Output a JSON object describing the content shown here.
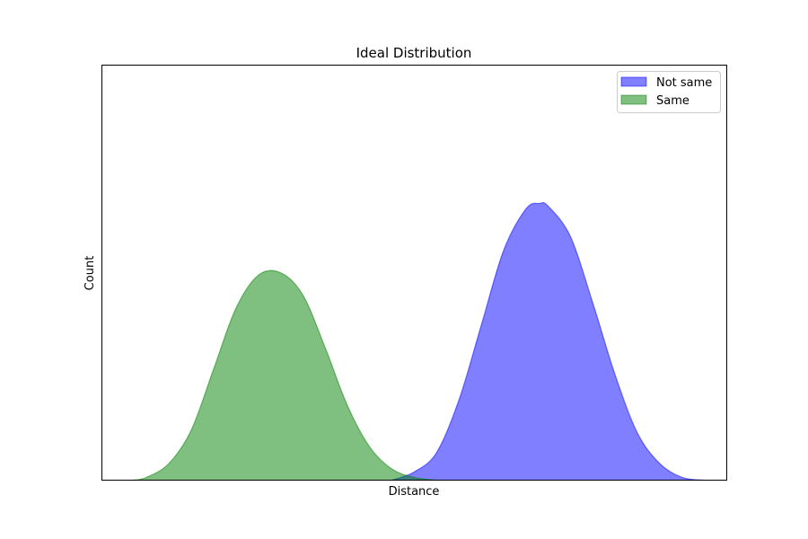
{
  "chart_data": {
    "type": "area",
    "title": "Ideal Distribution",
    "xlabel": "Distance",
    "ylabel": "Count",
    "xlim": [
      -0.2,
      1.2
    ],
    "ylim": [
      0,
      1.5
    ],
    "xticks": [],
    "yticks": [],
    "grid": false,
    "legend_position": "top-right",
    "series": [
      {
        "name": "Not same",
        "color": "#0000ff",
        "alpha": 0.5,
        "x": [
          0.45,
          0.5,
          0.55,
          0.6,
          0.65,
          0.7,
          0.75,
          0.78,
          0.8,
          0.85,
          0.9,
          0.95,
          1.0,
          1.05,
          1.1,
          1.15
        ],
        "y": [
          0.0,
          0.03,
          0.1,
          0.29,
          0.56,
          0.83,
          0.98,
          1.0,
          0.99,
          0.88,
          0.64,
          0.38,
          0.17,
          0.06,
          0.01,
          0.0
        ]
      },
      {
        "name": "Same",
        "color": "#008000",
        "alpha": 0.5,
        "x": [
          -0.13,
          -0.1,
          -0.05,
          0.0,
          0.05,
          0.1,
          0.15,
          0.2,
          0.25,
          0.3,
          0.35,
          0.4,
          0.45,
          0.5,
          0.55
        ],
        "y": [
          0.0,
          0.01,
          0.06,
          0.18,
          0.4,
          0.62,
          0.74,
          0.75,
          0.67,
          0.48,
          0.27,
          0.12,
          0.04,
          0.01,
          0.0
        ]
      }
    ]
  }
}
